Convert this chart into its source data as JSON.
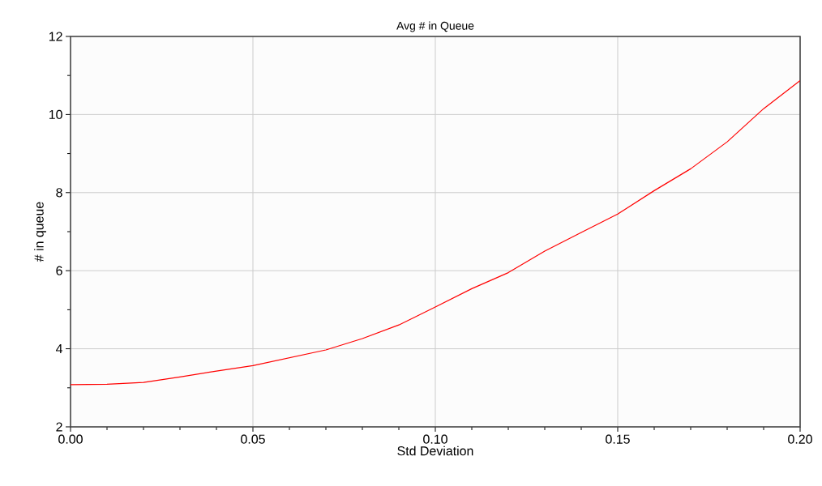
{
  "chart_data": {
    "type": "line",
    "title": "Avg # in Queue",
    "xlabel": "Std Deviation",
    "ylabel": "# in queue",
    "x": [
      0,
      0.01,
      0.02,
      0.03,
      0.04,
      0.05,
      0.06,
      0.07,
      0.08,
      0.09,
      0.1,
      0.11,
      0.12,
      0.13,
      0.14,
      0.15,
      0.16,
      0.17,
      0.18,
      0.19,
      0.2
    ],
    "series": [
      {
        "color": "#ff0000",
        "values": [
          3.08,
          3.09,
          3.14,
          3.28,
          3.43,
          3.57,
          3.77,
          3.97,
          4.26,
          4.61,
          5.07,
          5.54,
          5.95,
          6.5,
          6.98,
          7.45,
          8.05,
          8.61,
          9.3,
          10.15,
          10.87
        ]
      }
    ],
    "xlim": [
      0,
      0.2
    ],
    "ylim": [
      2,
      12
    ],
    "xticks": [
      {
        "value": 0,
        "label": "0.00"
      },
      {
        "value": 0.05,
        "label": "0.05"
      },
      {
        "value": 0.1,
        "label": "0.10"
      },
      {
        "value": 0.15,
        "label": "0.15"
      },
      {
        "value": 0.2,
        "label": "0.20"
      }
    ],
    "yticks": [
      2,
      4,
      6,
      8,
      10,
      12
    ],
    "grid": true
  }
}
